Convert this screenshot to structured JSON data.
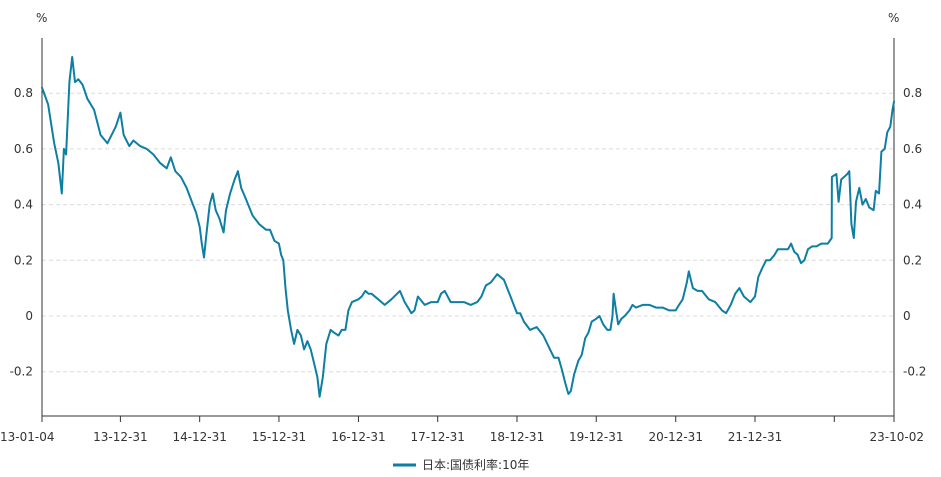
{
  "chart_data": {
    "type": "line",
    "title": "",
    "xlabel": "",
    "ylabel": "",
    "y_unit_left": "%",
    "y_unit_right": "%",
    "ylim": [
      -0.3,
      0.9
    ],
    "y_ticks": [
      0.8,
      0.6,
      0.4,
      0.2,
      0,
      -0.2
    ],
    "y_tick_labels": [
      "0.8",
      "0.6",
      "0.4",
      "0.2",
      "0",
      "-0.2"
    ],
    "x_tick_labels": [
      "13-01-04",
      "13-12-31",
      "14-12-31",
      "15-12-31",
      "16-12-31",
      "17-12-31",
      "18-12-31",
      "19-12-31",
      "20-12-31",
      "21-12-31",
      "23-10-02"
    ],
    "x_tick_dates": [
      "2013-01-04",
      "2013-12-31",
      "2014-12-31",
      "2015-12-31",
      "2016-12-31",
      "2017-12-31",
      "2018-12-31",
      "2019-12-31",
      "2020-12-31",
      "2021-12-31",
      "2023-10-02"
    ],
    "x_unlabeled_tick_dates": [
      "2022-12-31"
    ],
    "grid": true,
    "legend_position": "bottom-center",
    "color": "#0e7ea3",
    "series": [
      {
        "name": "日本:国债利率:10年",
        "points": [
          [
            "2013-01-04",
            0.82
          ],
          [
            "2013-02-01",
            0.76
          ],
          [
            "2013-03-01",
            0.62
          ],
          [
            "2013-03-20",
            0.55
          ],
          [
            "2013-04-05",
            0.44
          ],
          [
            "2013-04-15",
            0.6
          ],
          [
            "2013-04-25",
            0.58
          ],
          [
            "2013-05-10",
            0.84
          ],
          [
            "2013-05-23",
            0.93
          ],
          [
            "2013-06-05",
            0.84
          ],
          [
            "2013-06-20",
            0.85
          ],
          [
            "2013-07-10",
            0.83
          ],
          [
            "2013-08-01",
            0.78
          ],
          [
            "2013-09-01",
            0.74
          ],
          [
            "2013-10-01",
            0.65
          ],
          [
            "2013-11-01",
            0.62
          ],
          [
            "2013-12-10",
            0.68
          ],
          [
            "2013-12-31",
            0.73
          ],
          [
            "2014-01-15",
            0.65
          ],
          [
            "2014-02-10",
            0.61
          ],
          [
            "2014-03-01",
            0.63
          ],
          [
            "2014-04-01",
            0.61
          ],
          [
            "2014-05-01",
            0.6
          ],
          [
            "2014-06-01",
            0.58
          ],
          [
            "2014-07-01",
            0.55
          ],
          [
            "2014-08-01",
            0.53
          ],
          [
            "2014-08-20",
            0.57
          ],
          [
            "2014-09-10",
            0.52
          ],
          [
            "2014-10-05",
            0.5
          ],
          [
            "2014-11-01",
            0.46
          ],
          [
            "2014-11-20",
            0.42
          ],
          [
            "2014-12-15",
            0.37
          ],
          [
            "2014-12-31",
            0.32
          ],
          [
            "2015-01-10",
            0.26
          ],
          [
            "2015-01-20",
            0.21
          ],
          [
            "2015-02-01",
            0.3
          ],
          [
            "2015-02-15",
            0.4
          ],
          [
            "2015-03-01",
            0.44
          ],
          [
            "2015-03-15",
            0.38
          ],
          [
            "2015-04-01",
            0.35
          ],
          [
            "2015-04-20",
            0.3
          ],
          [
            "2015-05-01",
            0.38
          ],
          [
            "2015-05-20",
            0.44
          ],
          [
            "2015-06-10",
            0.49
          ],
          [
            "2015-06-25",
            0.52
          ],
          [
            "2015-07-10",
            0.46
          ],
          [
            "2015-08-01",
            0.42
          ],
          [
            "2015-09-01",
            0.36
          ],
          [
            "2015-10-01",
            0.33
          ],
          [
            "2015-11-01",
            0.31
          ],
          [
            "2015-11-20",
            0.31
          ],
          [
            "2015-12-10",
            0.27
          ],
          [
            "2015-12-31",
            0.26
          ],
          [
            "2016-01-10",
            0.22
          ],
          [
            "2016-01-20",
            0.2
          ],
          [
            "2016-01-30",
            0.1
          ],
          [
            "2016-02-10",
            0.02
          ],
          [
            "2016-02-25",
            -0.05
          ],
          [
            "2016-03-10",
            -0.1
          ],
          [
            "2016-03-25",
            -0.05
          ],
          [
            "2016-04-10",
            -0.07
          ],
          [
            "2016-04-25",
            -0.12
          ],
          [
            "2016-05-10",
            -0.09
          ],
          [
            "2016-05-25",
            -0.12
          ],
          [
            "2016-06-10",
            -0.17
          ],
          [
            "2016-06-25",
            -0.22
          ],
          [
            "2016-07-05",
            -0.29
          ],
          [
            "2016-07-20",
            -0.22
          ],
          [
            "2016-08-05",
            -0.1
          ],
          [
            "2016-08-25",
            -0.05
          ],
          [
            "2016-09-10",
            -0.06
          ],
          [
            "2016-09-30",
            -0.07
          ],
          [
            "2016-10-15",
            -0.05
          ],
          [
            "2016-11-01",
            -0.05
          ],
          [
            "2016-11-15",
            0.02
          ],
          [
            "2016-12-01",
            0.05
          ],
          [
            "2016-12-31",
            0.06
          ],
          [
            "2017-01-15",
            0.07
          ],
          [
            "2017-02-01",
            0.09
          ],
          [
            "2017-02-15",
            0.08
          ],
          [
            "2017-03-01",
            0.08
          ],
          [
            "2017-04-01",
            0.06
          ],
          [
            "2017-05-01",
            0.04
          ],
          [
            "2017-06-01",
            0.06
          ],
          [
            "2017-07-10",
            0.09
          ],
          [
            "2017-08-01",
            0.05
          ],
          [
            "2017-09-01",
            0.01
          ],
          [
            "2017-09-15",
            0.02
          ],
          [
            "2017-10-01",
            0.07
          ],
          [
            "2017-11-01",
            0.04
          ],
          [
            "2017-12-01",
            0.05
          ],
          [
            "2017-12-31",
            0.05
          ],
          [
            "2018-01-15",
            0.08
          ],
          [
            "2018-02-01",
            0.09
          ],
          [
            "2018-03-01",
            0.05
          ],
          [
            "2018-04-01",
            0.05
          ],
          [
            "2018-05-01",
            0.05
          ],
          [
            "2018-06-01",
            0.04
          ],
          [
            "2018-07-01",
            0.05
          ],
          [
            "2018-07-20",
            0.07
          ],
          [
            "2018-08-10",
            0.11
          ],
          [
            "2018-09-01",
            0.12
          ],
          [
            "2018-10-01",
            0.15
          ],
          [
            "2018-11-01",
            0.13
          ],
          [
            "2018-12-01",
            0.07
          ],
          [
            "2018-12-31",
            0.01
          ],
          [
            "2019-01-15",
            0.01
          ],
          [
            "2019-02-01",
            -0.02
          ],
          [
            "2019-03-01",
            -0.05
          ],
          [
            "2019-04-01",
            -0.04
          ],
          [
            "2019-05-01",
            -0.07
          ],
          [
            "2019-06-01",
            -0.12
          ],
          [
            "2019-06-20",
            -0.15
          ],
          [
            "2019-07-10",
            -0.15
          ],
          [
            "2019-07-25",
            -0.19
          ],
          [
            "2019-08-10",
            -0.24
          ],
          [
            "2019-08-25",
            -0.28
          ],
          [
            "2019-09-05",
            -0.27
          ],
          [
            "2019-09-20",
            -0.21
          ],
          [
            "2019-10-10",
            -0.16
          ],
          [
            "2019-10-25",
            -0.14
          ],
          [
            "2019-11-10",
            -0.08
          ],
          [
            "2019-11-25",
            -0.06
          ],
          [
            "2019-12-10",
            -0.02
          ],
          [
            "2019-12-31",
            -0.01
          ],
          [
            "2020-01-15",
            0.0
          ],
          [
            "2020-02-01",
            -0.03
          ],
          [
            "2020-02-20",
            -0.05
          ],
          [
            "2020-03-05",
            -0.05
          ],
          [
            "2020-03-15",
            0.0
          ],
          [
            "2020-03-20",
            0.08
          ],
          [
            "2020-03-31",
            0.02
          ],
          [
            "2020-04-10",
            -0.03
          ],
          [
            "2020-04-25",
            -0.01
          ],
          [
            "2020-05-10",
            0.0
          ],
          [
            "2020-06-01",
            0.02
          ],
          [
            "2020-06-15",
            0.04
          ],
          [
            "2020-07-01",
            0.03
          ],
          [
            "2020-08-01",
            0.04
          ],
          [
            "2020-09-01",
            0.04
          ],
          [
            "2020-10-01",
            0.03
          ],
          [
            "2020-11-01",
            0.03
          ],
          [
            "2020-12-01",
            0.02
          ],
          [
            "2020-12-31",
            0.02
          ],
          [
            "2021-01-15",
            0.04
          ],
          [
            "2021-02-01",
            0.06
          ],
          [
            "2021-02-20",
            0.12
          ],
          [
            "2021-03-01",
            0.16
          ],
          [
            "2021-03-20",
            0.1
          ],
          [
            "2021-04-10",
            0.09
          ],
          [
            "2021-05-01",
            0.09
          ],
          [
            "2021-06-01",
            0.06
          ],
          [
            "2021-07-01",
            0.05
          ],
          [
            "2021-08-01",
            0.02
          ],
          [
            "2021-08-20",
            0.01
          ],
          [
            "2021-09-10",
            0.04
          ],
          [
            "2021-10-01",
            0.08
          ],
          [
            "2021-10-20",
            0.1
          ],
          [
            "2021-11-10",
            0.07
          ],
          [
            "2021-12-10",
            0.05
          ],
          [
            "2021-12-31",
            0.07
          ],
          [
            "2022-01-15",
            0.14
          ],
          [
            "2022-02-01",
            0.17
          ],
          [
            "2022-02-20",
            0.2
          ],
          [
            "2022-03-10",
            0.2
          ],
          [
            "2022-03-31",
            0.22
          ],
          [
            "2022-04-15",
            0.24
          ],
          [
            "2022-05-10",
            0.24
          ],
          [
            "2022-06-01",
            0.24
          ],
          [
            "2022-06-15",
            0.26
          ],
          [
            "2022-06-30",
            0.23
          ],
          [
            "2022-07-15",
            0.22
          ],
          [
            "2022-07-31",
            0.19
          ],
          [
            "2022-08-15",
            0.2
          ],
          [
            "2022-09-01",
            0.24
          ],
          [
            "2022-09-20",
            0.25
          ],
          [
            "2022-10-10",
            0.25
          ],
          [
            "2022-11-01",
            0.26
          ],
          [
            "2022-12-01",
            0.26
          ],
          [
            "2022-12-19",
            0.28
          ],
          [
            "2022-12-20",
            0.5
          ],
          [
            "2023-01-10",
            0.51
          ],
          [
            "2023-01-20",
            0.41
          ],
          [
            "2023-02-01",
            0.49
          ],
          [
            "2023-02-15",
            0.5
          ],
          [
            "2023-03-01",
            0.51
          ],
          [
            "2023-03-10",
            0.52
          ],
          [
            "2023-03-20",
            0.33
          ],
          [
            "2023-03-31",
            0.28
          ],
          [
            "2023-04-10",
            0.41
          ],
          [
            "2023-04-25",
            0.46
          ],
          [
            "2023-05-10",
            0.4
          ],
          [
            "2023-05-25",
            0.42
          ],
          [
            "2023-06-10",
            0.39
          ],
          [
            "2023-06-30",
            0.38
          ],
          [
            "2023-07-10",
            0.45
          ],
          [
            "2023-07-25",
            0.44
          ],
          [
            "2023-08-05",
            0.59
          ],
          [
            "2023-08-20",
            0.6
          ],
          [
            "2023-09-01",
            0.66
          ],
          [
            "2023-09-15",
            0.68
          ],
          [
            "2023-09-25",
            0.74
          ],
          [
            "2023-10-02",
            0.77
          ]
        ]
      }
    ]
  }
}
